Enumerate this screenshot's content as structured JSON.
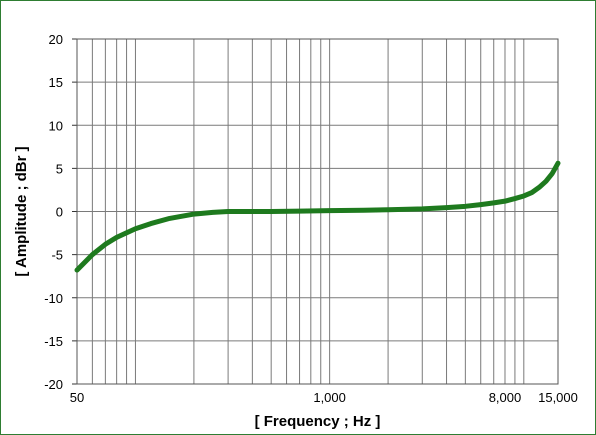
{
  "chart_data": {
    "type": "line",
    "title": "",
    "xlabel": "[ Frequency ; Hz ]",
    "ylabel": "[ Amplitude ; dBr ]",
    "xscale": "log",
    "xlim": [
      50,
      15000
    ],
    "ylim": [
      -20,
      20
    ],
    "grid": true,
    "legend": "none",
    "x_tick_labels": [
      {
        "value": 50,
        "label": "50"
      },
      {
        "value": 1000,
        "label": "1,000"
      },
      {
        "value": 8000,
        "label": "8,000"
      },
      {
        "value": 15000,
        "label": "15,000"
      }
    ],
    "y_ticks": [
      {
        "value": 20,
        "label": "20"
      },
      {
        "value": 15,
        "label": "15"
      },
      {
        "value": 10,
        "label": "10"
      },
      {
        "value": 5,
        "label": "5"
      },
      {
        "value": 0,
        "label": "0"
      },
      {
        "value": -5,
        "label": "-5"
      },
      {
        "value": -10,
        "label": "-10"
      },
      {
        "value": -15,
        "label": "-15"
      },
      {
        "value": -20,
        "label": "-20"
      }
    ],
    "x_gridlines": [
      50,
      60,
      70,
      80,
      90,
      100,
      200,
      300,
      400,
      500,
      600,
      700,
      800,
      900,
      1000,
      2000,
      3000,
      4000,
      5000,
      6000,
      7000,
      8000,
      9000,
      10000,
      15000
    ],
    "series": [
      {
        "color": "#1e7a1e",
        "x": [
          50,
          60,
          70,
          80,
          100,
          120,
          150,
          200,
          250,
          300,
          400,
          500,
          700,
          1000,
          1500,
          2000,
          3000,
          4000,
          5000,
          6000,
          7000,
          8000,
          9000,
          10000,
          11000,
          12000,
          13000,
          14000,
          15000
        ],
        "y": [
          -6.8,
          -5.0,
          -3.8,
          -3.0,
          -2.0,
          -1.4,
          -0.8,
          -0.3,
          -0.1,
          0.0,
          0.0,
          0.0,
          0.05,
          0.1,
          0.15,
          0.2,
          0.3,
          0.45,
          0.6,
          0.8,
          1.0,
          1.2,
          1.5,
          1.8,
          2.2,
          2.8,
          3.5,
          4.4,
          5.6
        ]
      }
    ]
  },
  "colors": {
    "frame": "#2e7d32",
    "grid": "#7a7a7a",
    "line": "#1e7a1e"
  }
}
